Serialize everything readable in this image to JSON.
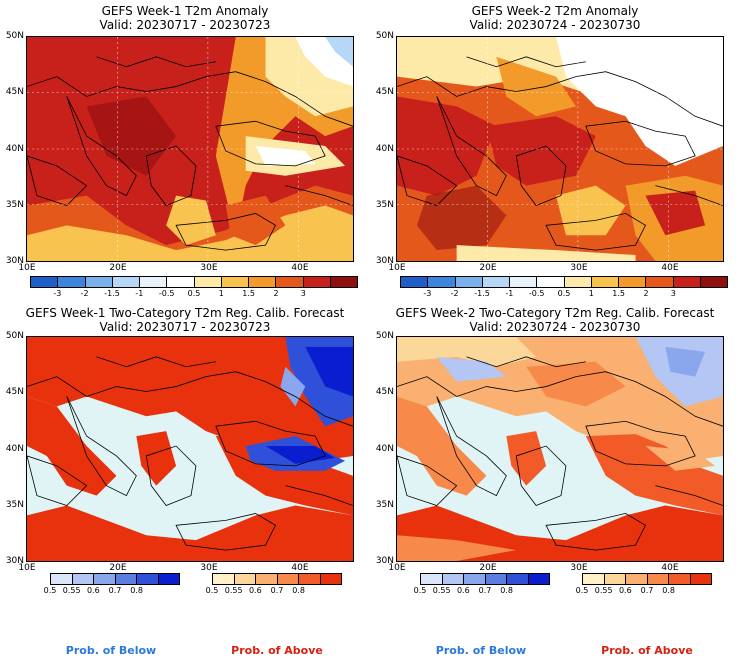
{
  "panels": [
    {
      "title": "GEFS Week-1 T2m Anomaly",
      "valid": "Valid: 20230717 - 20230723",
      "y_ticks": [
        "50N",
        "45N",
        "40N",
        "35N",
        "30N"
      ],
      "x_ticks": [
        "10E",
        "20E",
        "30E",
        "40E"
      ]
    },
    {
      "title": "GEFS Week-2 T2m Anomaly",
      "valid": "Valid: 20230724 - 20230730",
      "y_ticks": [
        "50N",
        "45N",
        "40N",
        "35N",
        "30N"
      ],
      "x_ticks": [
        "10E",
        "20E",
        "30E",
        "40E"
      ]
    },
    {
      "title": "GEFS Week-1 Two-Category T2m Reg. Calib. Forecast",
      "valid": "Valid: 20230717 - 20230723",
      "y_ticks": [
        "50N",
        "45N",
        "40N",
        "35N",
        "30N"
      ],
      "x_ticks": [
        "10E",
        "20E",
        "30E",
        "40E"
      ]
    },
    {
      "title": "GEFS Week-2 Two-Category T2m Reg. Calib. Forecast",
      "valid": "Valid: 20230724 - 20230730",
      "y_ticks": [
        "50N",
        "45N",
        "40N",
        "35N",
        "30N"
      ],
      "x_ticks": [
        "10E",
        "20E",
        "30E",
        "40E"
      ]
    }
  ],
  "anomaly_colorbar": {
    "colors": [
      "#1f5fc8",
      "#3d86dc",
      "#7ab3ec",
      "#b6d8f6",
      "#e8f3fc",
      "#ffffff",
      "#fde9a8",
      "#f9c350",
      "#f29a2a",
      "#e5581c",
      "#c8201a",
      "#8f0f0f"
    ],
    "labels": [
      "-3",
      "-2",
      "-1.5",
      "-1",
      "-0.5",
      "0.5",
      "1",
      "1.5",
      "2",
      "3"
    ]
  },
  "prob_below_colorbar": {
    "colors": [
      "#dce6fa",
      "#b3c6f4",
      "#8aa6ec",
      "#5a7ee2",
      "#2f50d8",
      "#0a1ed0"
    ],
    "labels": [
      "0.5",
      "0.55",
      "0.6",
      "0.7",
      "0.8"
    ]
  },
  "prob_above_colorbar": {
    "colors": [
      "#fff0c8",
      "#fcd79a",
      "#f9b070",
      "#f78a4a",
      "#f25a28",
      "#e8320e"
    ],
    "labels": [
      "0.5",
      "0.55",
      "0.6",
      "0.7",
      "0.8"
    ]
  },
  "prob_below_label": "Prob. of Below",
  "prob_above_label": "Prob. of Above",
  "colors": {
    "sea_light": "#e0f4f6",
    "deep_red": "#c8201a",
    "prob_below_text": "#2a7ad8",
    "prob_above_text": "#d62010"
  }
}
